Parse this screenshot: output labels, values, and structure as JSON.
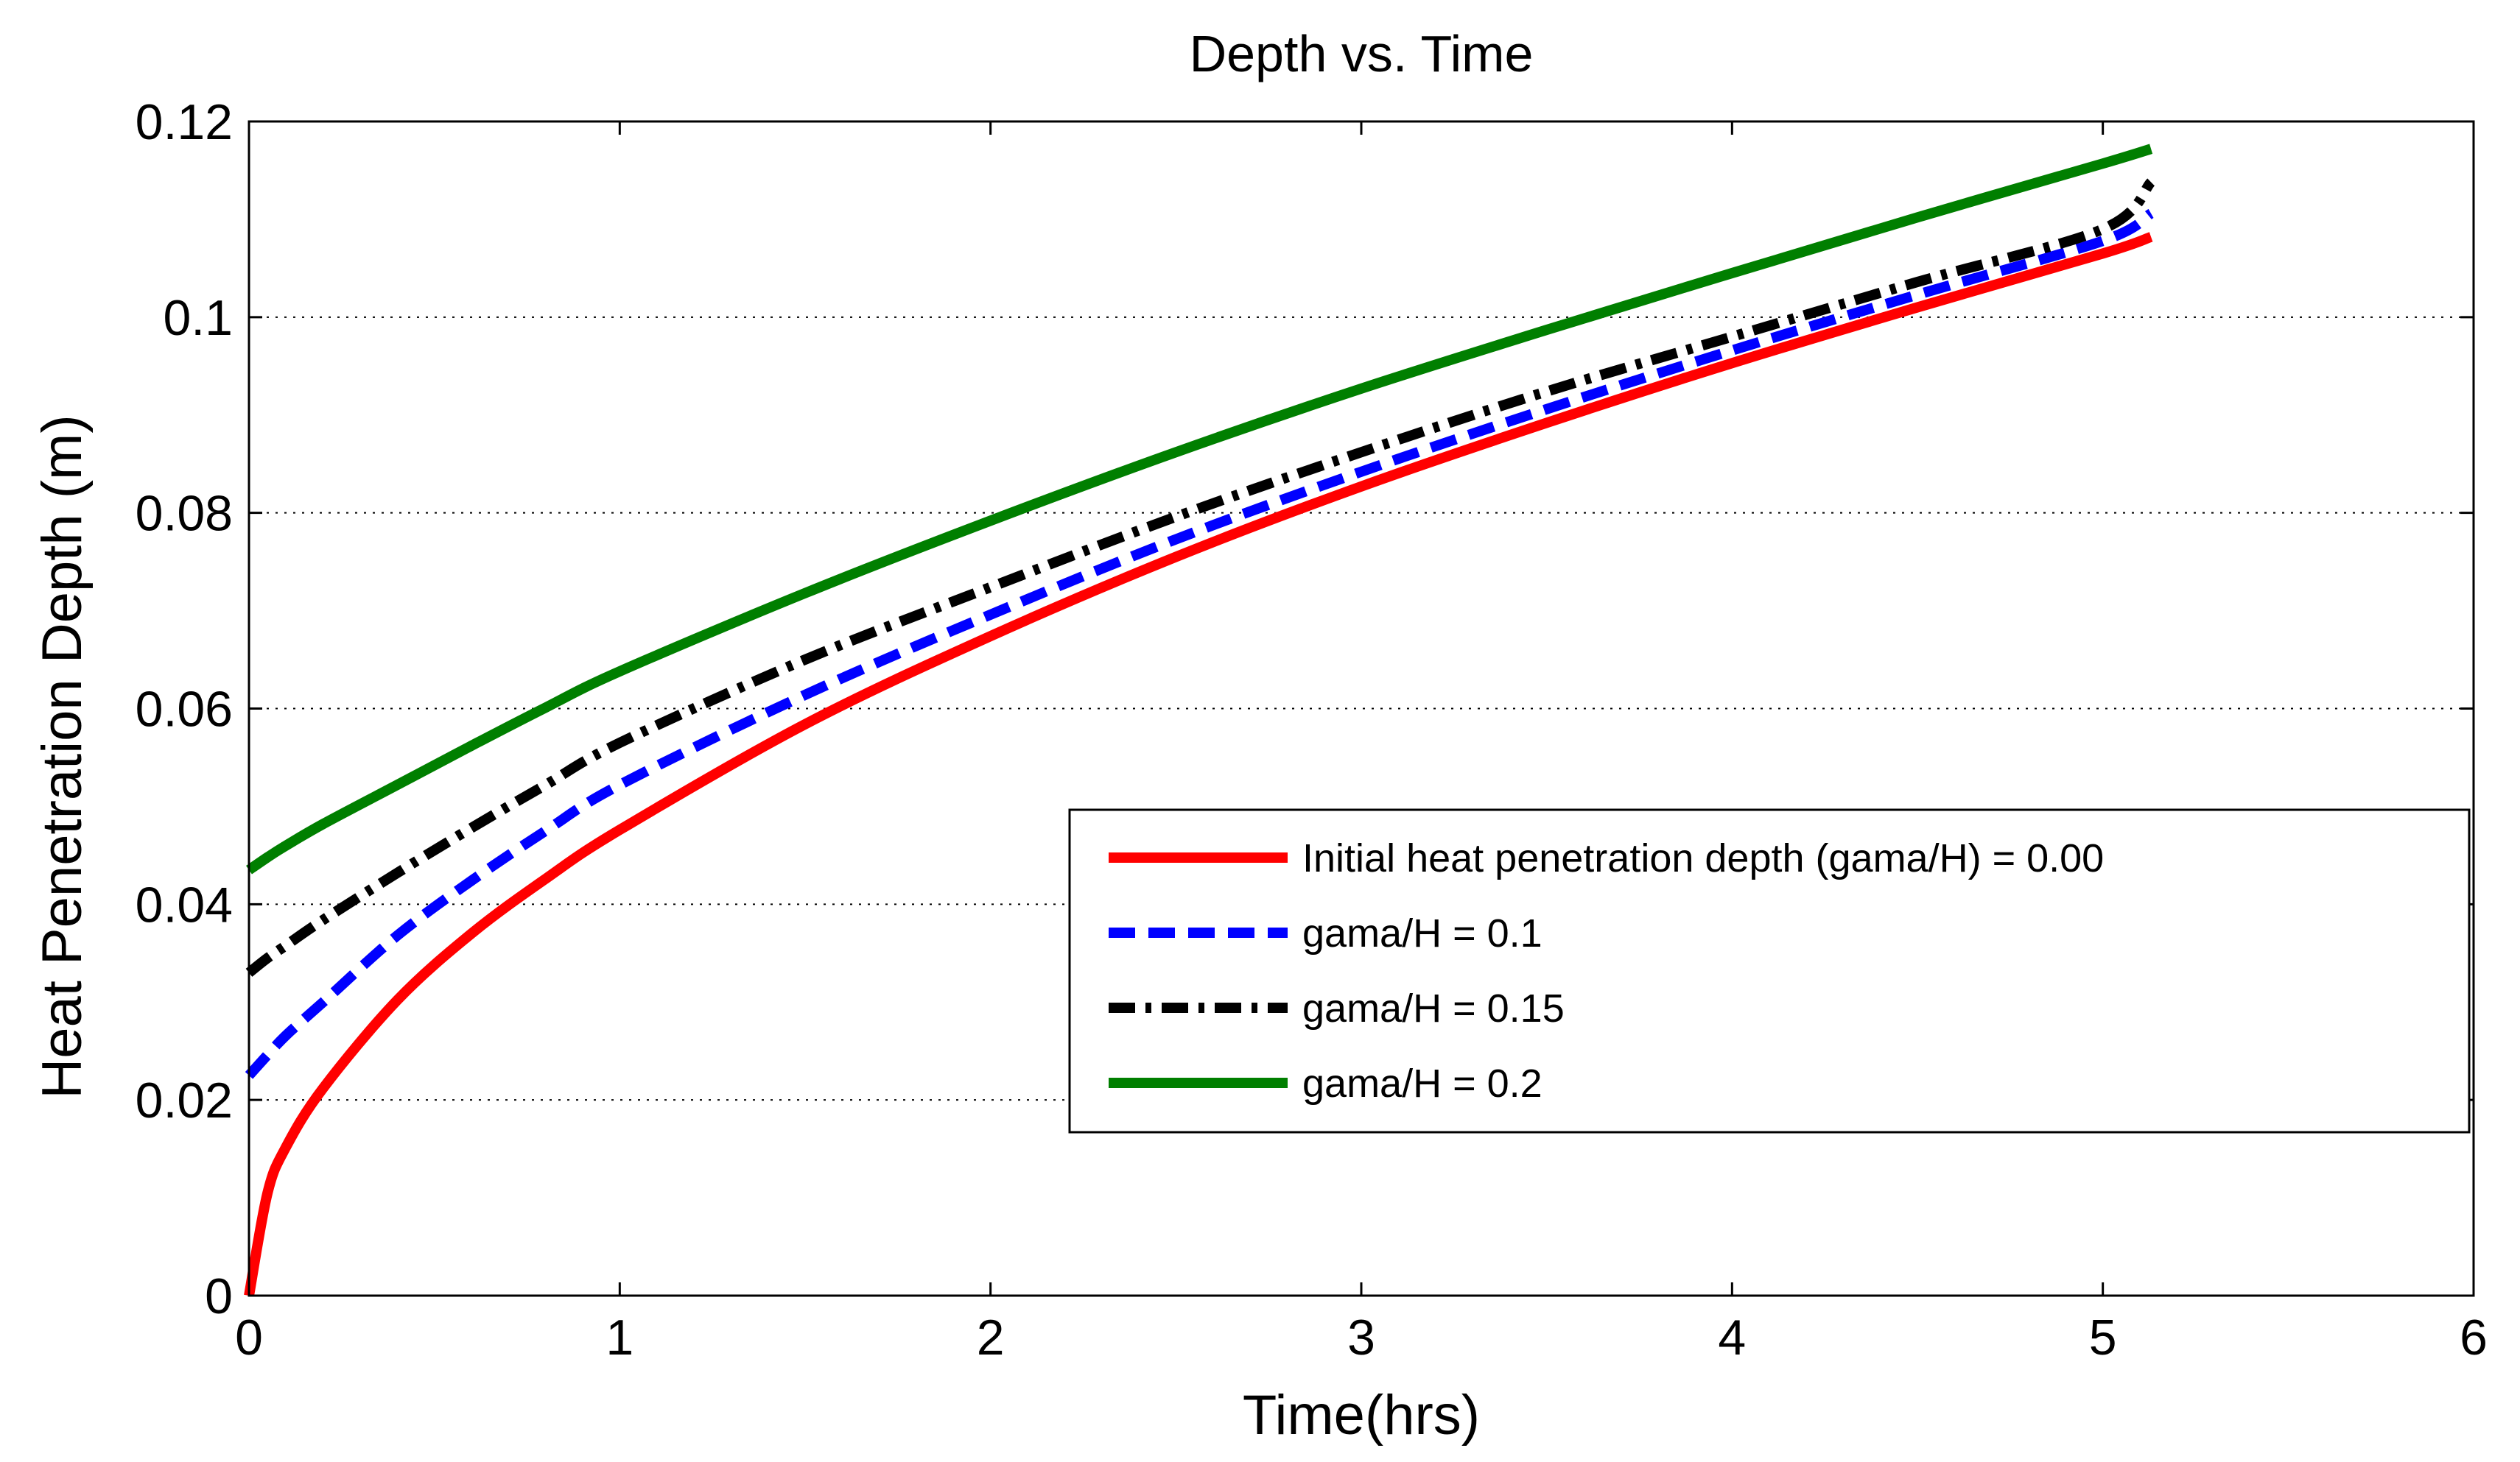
{
  "chart_data": {
    "type": "line",
    "title": "Depth vs. Time",
    "xlabel": "Time(hrs)",
    "ylabel": "Heat Penetration Depth (m)",
    "xlim": [
      0,
      6
    ],
    "ylim": [
      0,
      0.12
    ],
    "x_ticks": [
      0,
      1,
      2,
      3,
      4,
      5,
      6
    ],
    "x_tick_labels": [
      "0",
      "1",
      "2",
      "3",
      "4",
      "5",
      "6"
    ],
    "y_ticks": [
      0,
      0.02,
      0.04,
      0.06,
      0.08,
      0.1,
      0.12
    ],
    "y_tick_labels": [
      "0",
      "0.02",
      "0.04",
      "0.06",
      "0.08",
      "0.1",
      "0.12"
    ],
    "grid": "y-dotted",
    "legend_position": "lower-right",
    "series": [
      {
        "name": "Initial heat penetration depth (gama/H) = 0.00",
        "color": "#ff0000",
        "style": "solid",
        "x": [
          0,
          0.05,
          0.1,
          0.2,
          0.4,
          0.6,
          0.8,
          1,
          1.5,
          2,
          2.5,
          3,
          3.5,
          4,
          4.5,
          5,
          5.13
        ],
        "y": [
          0,
          0.0105,
          0.0152,
          0.0212,
          0.0302,
          0.037,
          0.0426,
          0.0476,
          0.0584,
          0.0674,
          0.0755,
          0.0827,
          0.0892,
          0.0953,
          0.101,
          0.1065,
          0.1082
        ]
      },
      {
        "name": "gama/H = 0.1",
        "color": "#0000ff",
        "style": "dashed",
        "x": [
          0,
          0.05,
          0.1,
          0.2,
          0.4,
          0.6,
          0.8,
          1,
          1.5,
          2,
          2.5,
          3,
          3.5,
          4,
          4.5,
          5,
          5.13
        ],
        "y": [
          0.0225,
          0.0246,
          0.0266,
          0.03,
          0.0368,
          0.0424,
          0.0475,
          0.0522,
          0.0614,
          0.0696,
          0.0773,
          0.0842,
          0.0906,
          0.0966,
          0.1023,
          0.1078,
          0.1106
        ]
      },
      {
        "name": "gama/H = 0.15",
        "color": "#000000",
        "style": "dashdot",
        "x": [
          0,
          0.05,
          0.1,
          0.2,
          0.4,
          0.6,
          0.8,
          1,
          1.5,
          2,
          2.5,
          3,
          3.5,
          4,
          4.5,
          5,
          5.13
        ],
        "y": [
          0.033,
          0.0345,
          0.0358,
          0.0384,
          0.0432,
          0.0478,
          0.0522,
          0.0565,
          0.065,
          0.0724,
          0.0796,
          0.0862,
          0.0924,
          0.098,
          0.1036,
          0.109,
          0.1138
        ]
      },
      {
        "name": "gama/H = 0.2",
        "color": "#007f00",
        "style": "solid",
        "x": [
          0,
          0.05,
          0.1,
          0.2,
          0.4,
          0.6,
          0.8,
          1,
          1.5,
          2,
          2.5,
          3,
          3.5,
          4,
          4.5,
          5,
          5.13
        ],
        "y": [
          0.0435,
          0.0448,
          0.046,
          0.0482,
          0.0522,
          0.0562,
          0.0601,
          0.0638,
          0.0718,
          0.0792,
          0.0862,
          0.0927,
          0.0987,
          0.1045,
          0.1102,
          0.1157,
          0.1172
        ]
      }
    ]
  }
}
